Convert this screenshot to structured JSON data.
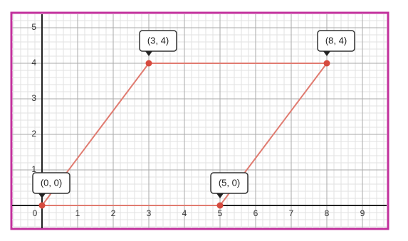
{
  "chart_data": {
    "type": "polygon",
    "series": [
      {
        "x": [
          0,
          3,
          8,
          5
        ],
        "values": [
          0,
          4,
          4,
          0
        ],
        "value_labels": [
          "(0, 0)",
          "(3, 4)",
          "(8, 4)",
          "(5, 0)"
        ],
        "color": "#e07b70",
        "point_color": "#d64a3e"
      }
    ],
    "xlim": [
      -0.84,
      9.68
    ],
    "ylim": [
      -0.64,
      5.38
    ],
    "xticks": [
      0,
      1,
      2,
      3,
      4,
      5,
      6,
      7,
      8,
      9
    ],
    "yticks": [
      1,
      2,
      3,
      4,
      5
    ],
    "grid": true
  }
}
